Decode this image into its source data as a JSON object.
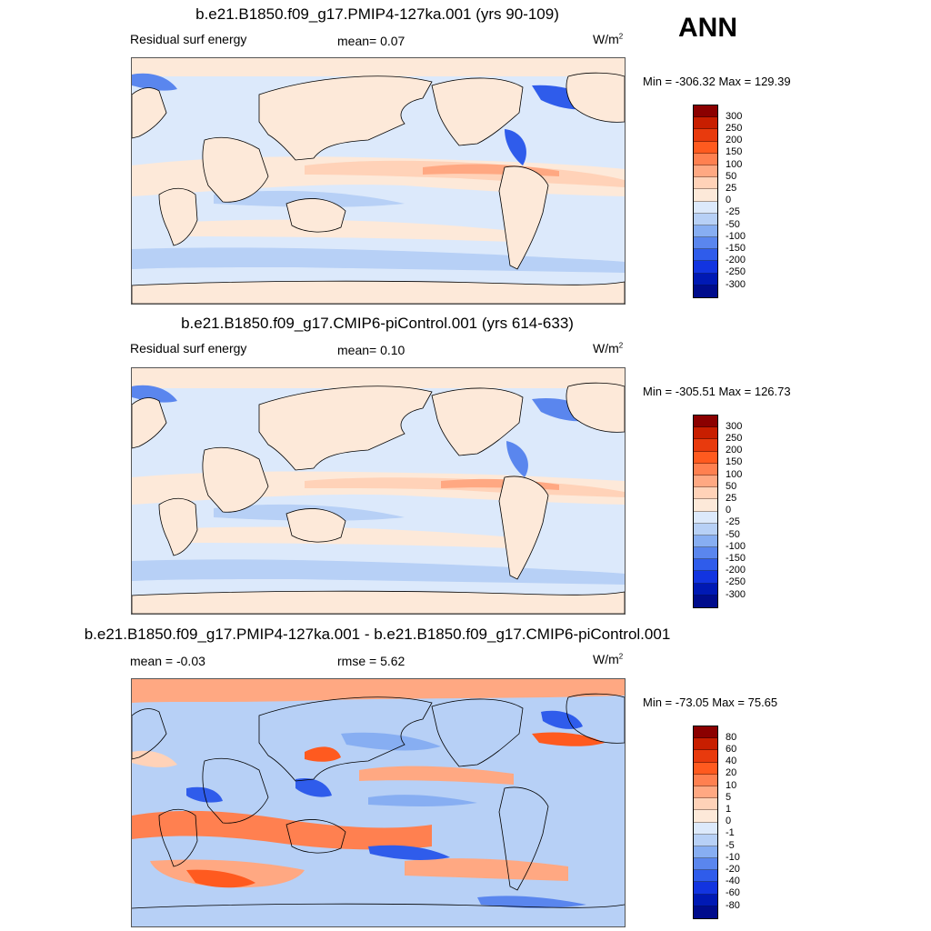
{
  "season": "ANN",
  "panels": [
    {
      "title": "b.e21.B1850.f09_g17.PMIP4-127ka.001 (yrs 90-109)",
      "left_label": "Residual surf energy",
      "center_label": "mean=   0.07",
      "units": "W/m",
      "units_sup": "2",
      "minmax": "Min = -306.32 Max = 129.39",
      "colorbar": {
        "labels": [
          "300",
          "250",
          "200",
          "150",
          "100",
          "50",
          "25",
          "0",
          "-25",
          "-50",
          "-100",
          "-150",
          "-200",
          "-250",
          "-300"
        ],
        "colors": [
          "#8b0000",
          "#c81e00",
          "#e83a0d",
          "#ff5a1f",
          "#ff8050",
          "#ffa882",
          "#ffd2b8",
          "#fde9d9",
          "#dce9fb",
          "#b7d0f6",
          "#87aef2",
          "#5a86ee",
          "#2f5ceb",
          "#1234e0",
          "#0019b4",
          "#000c8c"
        ]
      }
    },
    {
      "title": "b.e21.B1850.f09_g17.CMIP6-piControl.001 (yrs 614-633)",
      "left_label": "Residual surf energy",
      "center_label": "mean=   0.10",
      "units": "W/m",
      "units_sup": "2",
      "minmax": "Min = -305.51 Max = 126.73",
      "colorbar": {
        "labels": [
          "300",
          "250",
          "200",
          "150",
          "100",
          "50",
          "25",
          "0",
          "-25",
          "-50",
          "-100",
          "-150",
          "-200",
          "-250",
          "-300"
        ],
        "colors": [
          "#8b0000",
          "#c81e00",
          "#e83a0d",
          "#ff5a1f",
          "#ff8050",
          "#ffa882",
          "#ffd2b8",
          "#fde9d9",
          "#dce9fb",
          "#b7d0f6",
          "#87aef2",
          "#5a86ee",
          "#2f5ceb",
          "#1234e0",
          "#0019b4",
          "#000c8c"
        ]
      }
    },
    {
      "title": "b.e21.B1850.f09_g17.PMIP4-127ka.001 - b.e21.B1850.f09_g17.CMIP6-piControl.001",
      "left_label": "mean =  -0.03",
      "center_label": "rmse =   5.62",
      "units": "W/m",
      "units_sup": "2",
      "minmax": "Min = -73.05 Max =  75.65",
      "colorbar": {
        "labels": [
          "80",
          "60",
          "40",
          "20",
          "10",
          "5",
          "1",
          "0",
          "-1",
          "-5",
          "-10",
          "-20",
          "-40",
          "-60",
          "-80"
        ],
        "colors": [
          "#8b0000",
          "#c81e00",
          "#e83a0d",
          "#ff5a1f",
          "#ff8050",
          "#ffa882",
          "#ffd2b8",
          "#fde9d9",
          "#dce9fb",
          "#b7d0f6",
          "#87aef2",
          "#5a86ee",
          "#2f5ceb",
          "#1234e0",
          "#0019b4",
          "#000c8c"
        ]
      }
    }
  ],
  "chart_data": {
    "type": "heatmap",
    "projection": "cylindrical equidistant, centered on 180",
    "field": "Residual surf energy",
    "units": "W/m2",
    "maps": [
      {
        "case": "b.e21.B1850.f09_g17.PMIP4-127ka.001",
        "years": "90-109",
        "mean": 0.07,
        "min": -306.32,
        "max": 129.39,
        "contour_levels": [
          -300,
          -250,
          -200,
          -150,
          -100,
          -50,
          -25,
          0,
          25,
          50,
          100,
          150,
          200,
          250,
          300
        ]
      },
      {
        "case": "b.e21.B1850.f09_g17.CMIP6-piControl.001",
        "years": "614-633",
        "mean": 0.1,
        "min": -305.51,
        "max": 126.73,
        "contour_levels": [
          -300,
          -250,
          -200,
          -150,
          -100,
          -50,
          -25,
          0,
          25,
          50,
          100,
          150,
          200,
          250,
          300
        ]
      },
      {
        "case": "difference",
        "mean": -0.03,
        "rmse": 5.62,
        "min": -73.05,
        "max": 75.65,
        "contour_levels": [
          -80,
          -60,
          -40,
          -20,
          -10,
          -5,
          -1,
          0,
          1,
          5,
          10,
          20,
          40,
          60,
          80
        ]
      }
    ]
  }
}
